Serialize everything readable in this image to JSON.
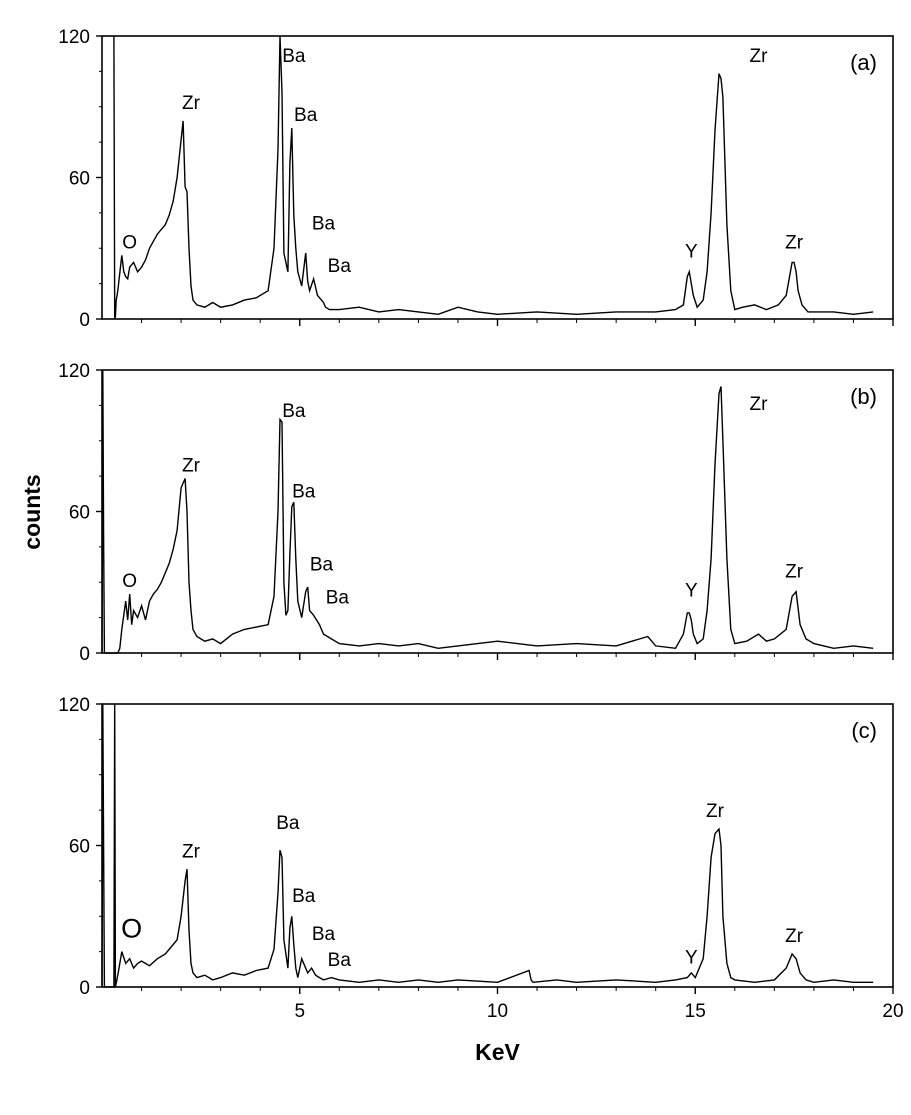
{
  "chart_data": [
    {
      "type": "line",
      "panel_label": "(a)",
      "xlim": [
        0,
        20
      ],
      "ylim": [
        0,
        120
      ],
      "yticks": [
        0,
        60,
        120
      ],
      "xticks": [
        5,
        10,
        15,
        20
      ],
      "show_x_tick_labels": false,
      "series": [
        {
          "x": [
            0.3,
            0.32,
            0.34,
            0.36,
            0.4,
            0.5,
            0.55,
            0.6,
            0.65,
            0.7,
            0.8,
            0.9,
            1.0,
            1.1,
            1.2,
            1.3,
            1.4,
            1.5,
            1.6,
            1.7,
            1.8,
            1.9,
            2.0,
            2.05,
            2.1,
            2.15,
            2.2,
            2.25,
            2.3,
            2.4,
            2.6,
            2.8,
            3.0,
            3.3,
            3.6,
            3.9,
            4.2,
            4.35,
            4.45,
            4.5,
            4.55,
            4.6,
            4.7,
            4.75,
            4.8,
            4.85,
            4.9,
            4.95,
            5.05,
            5.15,
            5.2,
            5.25,
            5.35,
            5.45,
            5.55,
            5.6,
            5.65,
            5.75,
            6.0,
            6.5,
            7.0,
            7.5,
            8.0,
            8.5,
            9.0,
            9.5,
            10.0,
            11.0,
            12.0,
            13.0,
            14.0,
            14.5,
            14.7,
            14.8,
            14.85,
            14.9,
            14.95,
            15.05,
            15.2,
            15.3,
            15.4,
            15.5,
            15.6,
            15.65,
            15.7,
            15.8,
            15.9,
            16.0,
            16.2,
            16.5,
            16.8,
            17.1,
            17.3,
            17.45,
            17.5,
            17.55,
            17.6,
            17.7,
            17.85,
            18.0,
            18.5,
            19.0,
            19.5
          ],
          "y": [
            120,
            0,
            1,
            8,
            12,
            27,
            20,
            18,
            17,
            22,
            24,
            20,
            22,
            25,
            30,
            33,
            36,
            38,
            40,
            44,
            50,
            60,
            76,
            84,
            56,
            54,
            30,
            14,
            8,
            6,
            5,
            7,
            5,
            6,
            8,
            9,
            12,
            30,
            72,
            120,
            96,
            28,
            20,
            66,
            81,
            44,
            30,
            20,
            14,
            28,
            16,
            12,
            17,
            10,
            8,
            7,
            5,
            4,
            4,
            5,
            3,
            4,
            3,
            2,
            5,
            3,
            2,
            3,
            2,
            3,
            3,
            4,
            6,
            18,
            20,
            15,
            10,
            5,
            8,
            20,
            45,
            80,
            104,
            102,
            94,
            40,
            12,
            4,
            5,
            6,
            4,
            6,
            10,
            24,
            24,
            20,
            12,
            6,
            3,
            3,
            3,
            2,
            3
          ]
        }
      ],
      "annotations": [
        {
          "text": "O",
          "x": 0.7,
          "y": 30
        },
        {
          "text": "Zr",
          "x": 2.25,
          "y": 89
        },
        {
          "text": "Ba",
          "x": 4.85,
          "y": 109
        },
        {
          "text": "Ba",
          "x": 5.15,
          "y": 84
        },
        {
          "text": "Ba",
          "x": 5.6,
          "y": 38
        },
        {
          "text": "Ba",
          "x": 6.0,
          "y": 20
        },
        {
          "text": "Y",
          "x": 14.9,
          "y": 26
        },
        {
          "text": "Zr",
          "x": 16.6,
          "y": 109
        },
        {
          "text": "Zr",
          "x": 17.5,
          "y": 30
        }
      ]
    },
    {
      "type": "line",
      "panel_label": "(b)",
      "xlim": [
        0,
        20
      ],
      "ylim": [
        0,
        120
      ],
      "yticks": [
        0,
        60,
        120
      ],
      "xticks": [
        5,
        10,
        15,
        20
      ],
      "show_x_tick_labels": false,
      "series": [
        {
          "x": [
            0.0,
            0.02,
            0.04,
            0.06,
            0.4,
            0.45,
            0.5,
            0.6,
            0.65,
            0.7,
            0.75,
            0.8,
            0.9,
            1.0,
            1.1,
            1.2,
            1.3,
            1.4,
            1.5,
            1.6,
            1.7,
            1.8,
            1.9,
            2.0,
            2.1,
            2.15,
            2.2,
            2.25,
            2.3,
            2.4,
            2.6,
            2.8,
            3.0,
            3.3,
            3.6,
            3.9,
            4.2,
            4.35,
            4.45,
            4.5,
            4.55,
            4.6,
            4.65,
            4.7,
            4.75,
            4.8,
            4.85,
            4.9,
            4.95,
            5.05,
            5.15,
            5.2,
            5.25,
            5.35,
            5.5,
            5.6,
            5.8,
            6.0,
            6.5,
            7.0,
            7.5,
            8.0,
            8.5,
            9.0,
            9.5,
            10.0,
            11.0,
            12.0,
            13.0,
            13.8,
            14.0,
            14.5,
            14.7,
            14.8,
            14.85,
            14.9,
            14.95,
            15.05,
            15.2,
            15.3,
            15.4,
            15.5,
            15.6,
            15.65,
            15.7,
            15.8,
            15.9,
            16.0,
            16.3,
            16.6,
            16.8,
            17.0,
            17.3,
            17.45,
            17.55,
            17.65,
            17.8,
            18.0,
            18.5,
            19.0,
            19.5
          ],
          "y": [
            0,
            120,
            50,
            0,
            0,
            2,
            10,
            22,
            14,
            25,
            12,
            18,
            15,
            20,
            14,
            22,
            25,
            27,
            30,
            34,
            38,
            44,
            52,
            70,
            74,
            60,
            30,
            18,
            10,
            7,
            5,
            6,
            4,
            8,
            10,
            11,
            12,
            24,
            60,
            99,
            98,
            30,
            16,
            18,
            42,
            62,
            64,
            40,
            22,
            15,
            26,
            28,
            18,
            16,
            12,
            8,
            6,
            4,
            3,
            4,
            3,
            4,
            2,
            3,
            4,
            5,
            3,
            4,
            3,
            7,
            3,
            2,
            8,
            17,
            17,
            14,
            8,
            4,
            6,
            18,
            40,
            80,
            110,
            113,
            90,
            40,
            10,
            4,
            5,
            8,
            5,
            6,
            10,
            24,
            26,
            12,
            6,
            4,
            2,
            3,
            2
          ]
        }
      ],
      "annotations": [
        {
          "text": "O",
          "x": 0.7,
          "y": 28
        },
        {
          "text": "Zr",
          "x": 2.25,
          "y": 77
        },
        {
          "text": "Ba",
          "x": 4.85,
          "y": 100
        },
        {
          "text": "Ba",
          "x": 5.1,
          "y": 66
        },
        {
          "text": "Ba",
          "x": 5.55,
          "y": 35
        },
        {
          "text": "Ba",
          "x": 5.95,
          "y": 21
        },
        {
          "text": "Y",
          "x": 14.9,
          "y": 24
        },
        {
          "text": "Zr",
          "x": 16.6,
          "y": 103
        },
        {
          "text": "Zr",
          "x": 17.5,
          "y": 32
        }
      ]
    },
    {
      "type": "line",
      "panel_label": "(c)",
      "xlim": [
        0,
        20
      ],
      "ylim": [
        0,
        120
      ],
      "yticks": [
        0,
        60,
        120
      ],
      "xticks": [
        5,
        10,
        15,
        20
      ],
      "show_x_tick_labels": true,
      "xlabel": "KeV",
      "series": [
        {
          "x": [
            0.0,
            0.02,
            0.04,
            0.06,
            0.3,
            0.32,
            0.34,
            0.4,
            0.5,
            0.6,
            0.7,
            0.8,
            0.9,
            1.0,
            1.2,
            1.4,
            1.6,
            1.8,
            1.9,
            2.0,
            2.1,
            2.15,
            2.2,
            2.25,
            2.3,
            2.4,
            2.6,
            2.8,
            3.0,
            3.3,
            3.6,
            3.9,
            4.2,
            4.35,
            4.45,
            4.5,
            4.55,
            4.6,
            4.7,
            4.75,
            4.8,
            4.85,
            4.9,
            4.95,
            5.05,
            5.2,
            5.3,
            5.4,
            5.5,
            5.6,
            5.8,
            6.0,
            6.5,
            7.0,
            7.5,
            8.0,
            8.5,
            9.0,
            10.0,
            10.8,
            10.85,
            10.9,
            11.5,
            12.0,
            13.0,
            14.0,
            14.5,
            14.8,
            14.9,
            15.0,
            15.2,
            15.3,
            15.4,
            15.5,
            15.6,
            15.65,
            15.7,
            15.8,
            15.9,
            16.0,
            16.5,
            17.0,
            17.3,
            17.45,
            17.55,
            17.65,
            17.8,
            18.0,
            18.5,
            19.0,
            19.5
          ],
          "y": [
            0,
            120,
            60,
            0,
            0,
            120,
            0,
            5,
            15,
            10,
            12,
            8,
            10,
            11,
            9,
            12,
            14,
            18,
            20,
            30,
            45,
            50,
            24,
            10,
            6,
            4,
            5,
            3,
            4,
            6,
            5,
            7,
            8,
            16,
            40,
            58,
            55,
            20,
            8,
            25,
            30,
            18,
            8,
            4,
            12,
            6,
            8,
            5,
            4,
            3,
            4,
            3,
            2,
            3,
            2,
            3,
            2,
            3,
            2,
            7,
            3,
            2,
            3,
            2,
            3,
            2,
            3,
            4,
            6,
            4,
            12,
            30,
            55,
            65,
            67,
            60,
            30,
            10,
            4,
            3,
            2,
            3,
            8,
            14,
            12,
            6,
            3,
            2,
            3,
            2,
            2
          ]
        }
      ],
      "annotations": [
        {
          "text": "O",
          "x": 0.75,
          "y": 21,
          "large": true
        },
        {
          "text": "Zr",
          "x": 2.25,
          "y": 55
        },
        {
          "text": "Ba",
          "x": 4.7,
          "y": 67
        },
        {
          "text": "Ba",
          "x": 5.1,
          "y": 36
        },
        {
          "text": "Ba",
          "x": 5.6,
          "y": 20
        },
        {
          "text": "Ba",
          "x": 6.0,
          "y": 9
        },
        {
          "text": "Y",
          "x": 14.9,
          "y": 10
        },
        {
          "text": "Zr",
          "x": 15.5,
          "y": 72
        },
        {
          "text": "Zr",
          "x": 17.5,
          "y": 19
        }
      ]
    }
  ],
  "shared": {
    "ylabel": "counts"
  }
}
